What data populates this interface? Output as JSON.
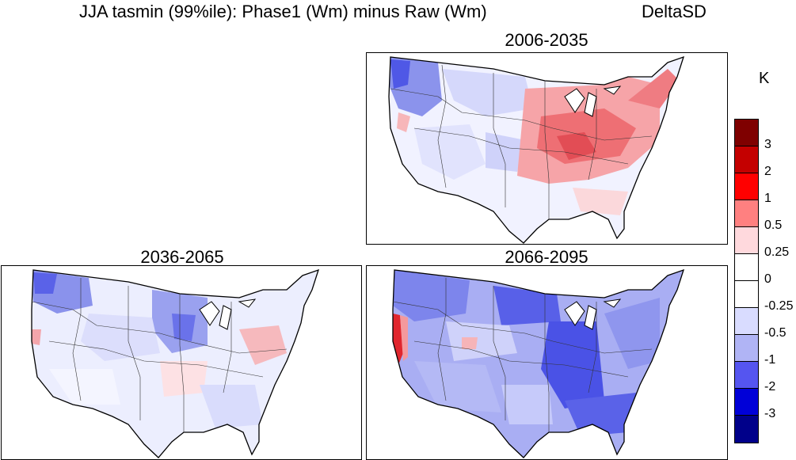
{
  "title": {
    "main": "JJA  tasmin (99%ile): Phase1 (Wm) minus Raw (Wm)",
    "tag": "DeltaSD"
  },
  "panels": [
    {
      "id": "p1",
      "period": "2006-2035"
    },
    {
      "id": "p2",
      "period": "2036-2065"
    },
    {
      "id": "p3",
      "period": "2066-2095"
    }
  ],
  "colorbar": {
    "unit": "K",
    "labels": [
      "3",
      "2",
      "1",
      "0.5",
      "0.25",
      "0",
      "-0.25",
      "-0.5",
      "-1",
      "-2",
      "-3"
    ],
    "colors": [
      "#7f0000",
      "#c40000",
      "#ff0000",
      "#ff8080",
      "#ffd9dd",
      "#ffffff",
      "#ffffff",
      "#d9dcff",
      "#b0b4f5",
      "#5555f0",
      "#0000d8",
      "#00008a"
    ]
  }
}
